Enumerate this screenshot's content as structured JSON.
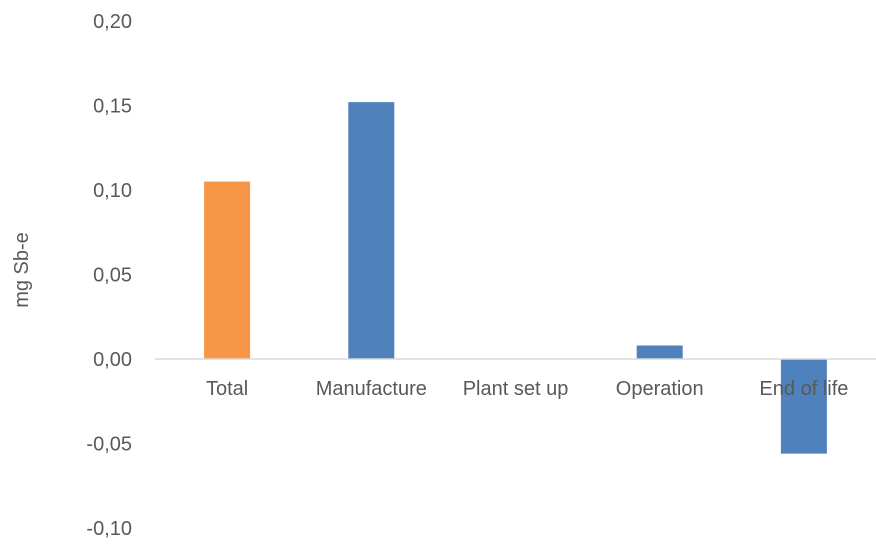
{
  "chart_data": {
    "type": "bar",
    "title": "",
    "xlabel": "",
    "ylabel": "mg Sb-e",
    "ylim": [
      -0.1,
      0.2
    ],
    "yticks": [
      0.2,
      0.15,
      0.1,
      0.05,
      0.0,
      -0.05,
      -0.1
    ],
    "ytick_labels": [
      "0,20",
      "0,15",
      "0,10",
      "0,05",
      "0,00",
      "-0,05",
      "-0,10"
    ],
    "grid": false,
    "legend": "none",
    "categories": [
      "Total",
      "Manufacture",
      "Plant set up",
      "Operation",
      "End of life"
    ],
    "values": [
      0.105,
      0.152,
      0.0,
      0.008,
      -0.056
    ],
    "colors": [
      "#F79646",
      "#4F81BD",
      "#4F81BD",
      "#4F81BD",
      "#4F81BD"
    ]
  }
}
